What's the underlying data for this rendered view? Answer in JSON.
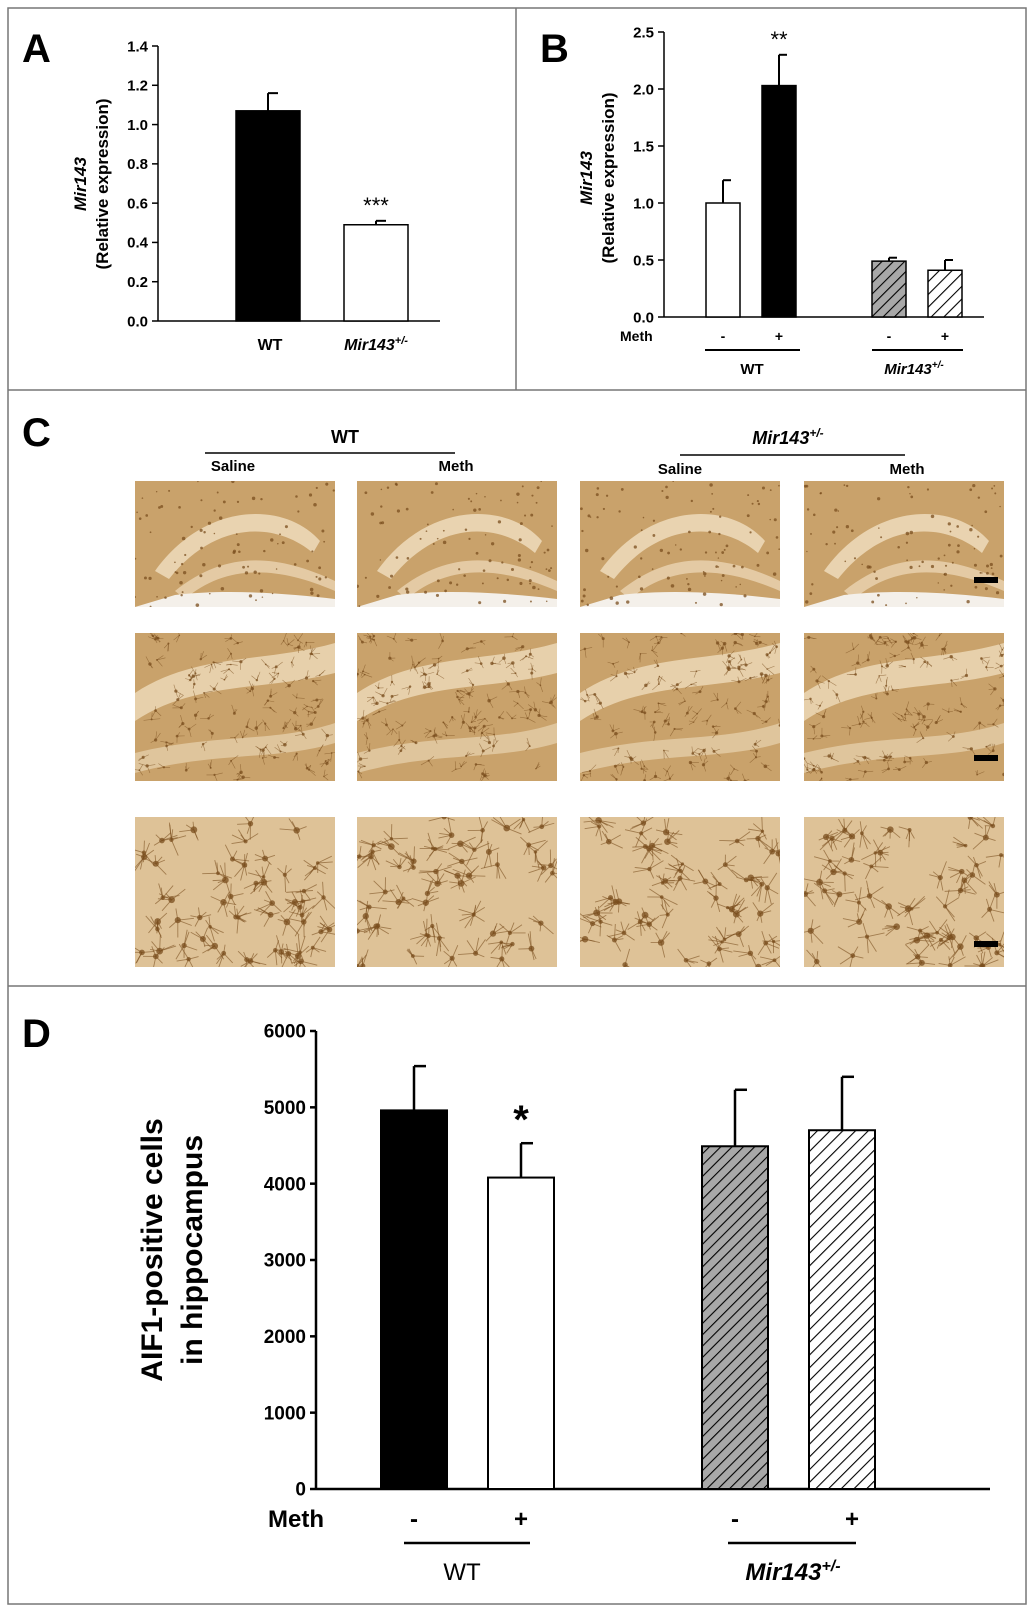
{
  "labels": {
    "wt": "WT",
    "mir": "Mir143",
    "mir_sup": "+/-",
    "meth": "Meth",
    "minus": "-",
    "plus": "+",
    "saline": "Saline"
  },
  "colors": {
    "black_bar": "#000000",
    "white_bar": "#ffffff",
    "gray_hatch": "#a8a8a8",
    "tissue_dark": "#c9a26b",
    "tissue_light": "#efdcbc",
    "cell_stain": "#7a4e1e",
    "border": "#777777"
  },
  "chart_data": [
    {
      "panel": "A",
      "type": "bar",
      "ylabel_gene": "Mir143",
      "ylabel": "(Relative expression)",
      "ylim": [
        0,
        1.4
      ],
      "yticks": [
        "0.0",
        "0.2",
        "0.4",
        "0.6",
        "0.8",
        "1.0",
        "1.2",
        "1.4"
      ],
      "categories": [
        "WT",
        "Mir143+/-"
      ],
      "bars": [
        {
          "value": 1.07,
          "error": 0.09,
          "fill": "black",
          "sig": ""
        },
        {
          "value": 0.49,
          "error": 0.02,
          "fill": "white",
          "sig": "***"
        }
      ]
    },
    {
      "panel": "B",
      "type": "bar",
      "ylabel_gene": "Mir143",
      "ylabel": "(Relative expression)",
      "ylim": [
        0,
        2.5
      ],
      "yticks": [
        "0.0",
        "0.5",
        "1.0",
        "1.5",
        "2.0",
        "2.5"
      ],
      "treatment_label": "Meth",
      "groups": [
        "WT",
        "Mir143+/-"
      ],
      "bars": [
        {
          "group": "WT",
          "meth": "-",
          "value": 1.0,
          "error": 0.2,
          "fill": "white",
          "sig": ""
        },
        {
          "group": "WT",
          "meth": "+",
          "value": 2.03,
          "error": 0.27,
          "fill": "black",
          "sig": "**"
        },
        {
          "group": "Mir143+/-",
          "meth": "-",
          "value": 0.49,
          "error": 0.03,
          "fill": "gray-hatch",
          "sig": ""
        },
        {
          "group": "Mir143+/-",
          "meth": "+",
          "value": 0.41,
          "error": 0.09,
          "fill": "white-hatch",
          "sig": ""
        }
      ]
    },
    {
      "panel": "D",
      "type": "bar",
      "ylabel_line1": "AIF1-positive cells",
      "ylabel_line2": "in hippocampus",
      "ylim": [
        0,
        6000
      ],
      "yticks": [
        "0",
        "1000",
        "2000",
        "3000",
        "4000",
        "5000",
        "6000"
      ],
      "treatment_label": "Meth",
      "groups": [
        "WT",
        "Mir143+/-"
      ],
      "bars": [
        {
          "group": "WT",
          "meth": "-",
          "value": 4960,
          "error": 580,
          "fill": "black",
          "sig": ""
        },
        {
          "group": "WT",
          "meth": "+",
          "value": 4080,
          "error": 450,
          "fill": "white",
          "sig": "*"
        },
        {
          "group": "Mir143+/-",
          "meth": "-",
          "value": 4490,
          "error": 740,
          "fill": "gray-hatch",
          "sig": ""
        },
        {
          "group": "Mir143+/-",
          "meth": "+",
          "value": 4700,
          "error": 700,
          "fill": "white-hatch",
          "sig": ""
        }
      ]
    }
  ],
  "panel_c": {
    "letter": "C",
    "group_labels": [
      "WT",
      "Mir143+/-"
    ],
    "column_labels": [
      "Saline",
      "Meth",
      "Saline",
      "Meth"
    ],
    "rows": 3
  },
  "panel_letters": {
    "a": "A",
    "b": "B",
    "c": "C",
    "d": "D"
  }
}
